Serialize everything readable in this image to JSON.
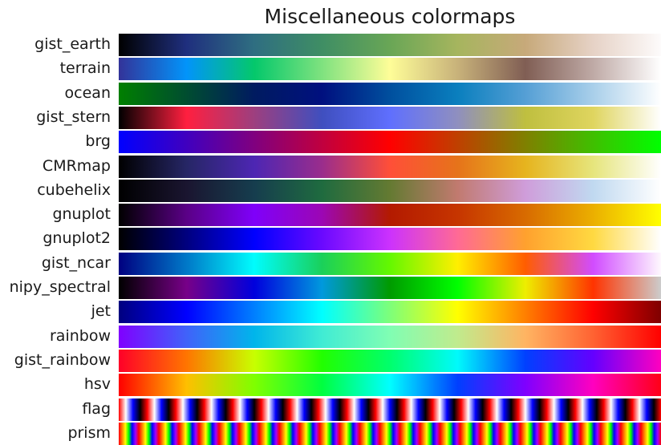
{
  "chart_data": {
    "type": "heatmap",
    "title": "Miscellaneous colormaps",
    "colormaps": [
      {
        "name": "gist_earth",
        "stops": [
          "#000000",
          "#1f2f7e",
          "#2f6e81",
          "#3f8e64",
          "#69a656",
          "#a6b55e",
          "#c7a97a",
          "#e6d2c6",
          "#fdfbfb"
        ]
      },
      {
        "name": "terrain",
        "stops": [
          "#333399",
          "#0294fa",
          "#04c86b",
          "#7fe27f",
          "#fefd98",
          "#c8b27a",
          "#805e54",
          "#bfaaa6",
          "#ffffff"
        ]
      },
      {
        "name": "ocean",
        "stops": [
          "#007f00",
          "#004d30",
          "#001b60",
          "#00107f",
          "#004f9e",
          "#0a7fbe",
          "#559fd5",
          "#a9cfea",
          "#ffffff"
        ]
      },
      {
        "name": "gist_stern",
        "stops": [
          "#000000",
          "#ff1f3f",
          "#9d3f7f",
          "#3f4fbf",
          "#5f6ffe",
          "#8f8fbf",
          "#bfbf3f",
          "#dfd55f",
          "#ffffff"
        ]
      },
      {
        "name": "brg",
        "stops": [
          "#0000ff",
          "#4000bf",
          "#80007f",
          "#c0003f",
          "#ff0000",
          "#bf4000",
          "#7f8000",
          "#3fbf00",
          "#00ff00"
        ]
      },
      {
        "name": "CMRmap",
        "stops": [
          "#000000",
          "#262665",
          "#4d26b3",
          "#9a2d8c",
          "#ff4f38",
          "#e6731a",
          "#e6b41e",
          "#e6e57c",
          "#ffffff"
        ]
      },
      {
        "name": "cubehelix",
        "stops": [
          "#000000",
          "#1a1530",
          "#163d4e",
          "#1f6b3f",
          "#647a32",
          "#c17a6f",
          "#cf9dda",
          "#c0d9f0",
          "#ffffff"
        ]
      },
      {
        "name": "gnuplot",
        "stops": [
          "#000000",
          "#5a0086",
          "#7f00fa",
          "#9c07b4",
          "#b31a00",
          "#c63500",
          "#d86b00",
          "#ebaf00",
          "#ffff00"
        ]
      },
      {
        "name": "gnuplot2",
        "stops": [
          "#000000",
          "#00007f",
          "#0000ff",
          "#6a09ff",
          "#cc32fd",
          "#ff6a95",
          "#ffa12e",
          "#ffd941",
          "#ffffff"
        ]
      },
      {
        "name": "gist_ncar",
        "stops": [
          "#000080",
          "#0078c8",
          "#00fcfd",
          "#1ad05a",
          "#64f800",
          "#ffef00",
          "#ff5d00",
          "#d14cff",
          "#fef8fe"
        ]
      },
      {
        "name": "nipy_spectral",
        "stops": [
          "#000000",
          "#770088",
          "#0000dd",
          "#0099dd",
          "#009b00",
          "#00ff00",
          "#eeee00",
          "#ff3300",
          "#cccccc"
        ]
      },
      {
        "name": "jet",
        "stops": [
          "#00007f",
          "#0000ff",
          "#007fff",
          "#00ffff",
          "#7dff7a",
          "#ffff00",
          "#ff7f00",
          "#ff0000",
          "#7f0000"
        ]
      },
      {
        "name": "rainbow",
        "stops": [
          "#8000ff",
          "#4062fa",
          "#00b5eb",
          "#40ecd4",
          "#80feb3",
          "#c0eb8d",
          "#ffb462",
          "#ff6232",
          "#ff0000"
        ]
      },
      {
        "name": "gist_rainbow",
        "stops": [
          "#ff0028",
          "#ff7500",
          "#c8ff00",
          "#22ff00",
          "#00ff6c",
          "#00fafb",
          "#0040ff",
          "#6400ff",
          "#ff00bf"
        ]
      },
      {
        "name": "hsv",
        "stops": [
          "#ff0000",
          "#ffbf00",
          "#7fff00",
          "#00ff3f",
          "#00ffff",
          "#003fff",
          "#7f00ff",
          "#ff00bf",
          "#ff0017"
        ]
      },
      {
        "name": "flag",
        "pattern": "flag",
        "cycles": 19
      },
      {
        "name": "prism",
        "pattern": "prism",
        "cycles": 27
      }
    ]
  }
}
